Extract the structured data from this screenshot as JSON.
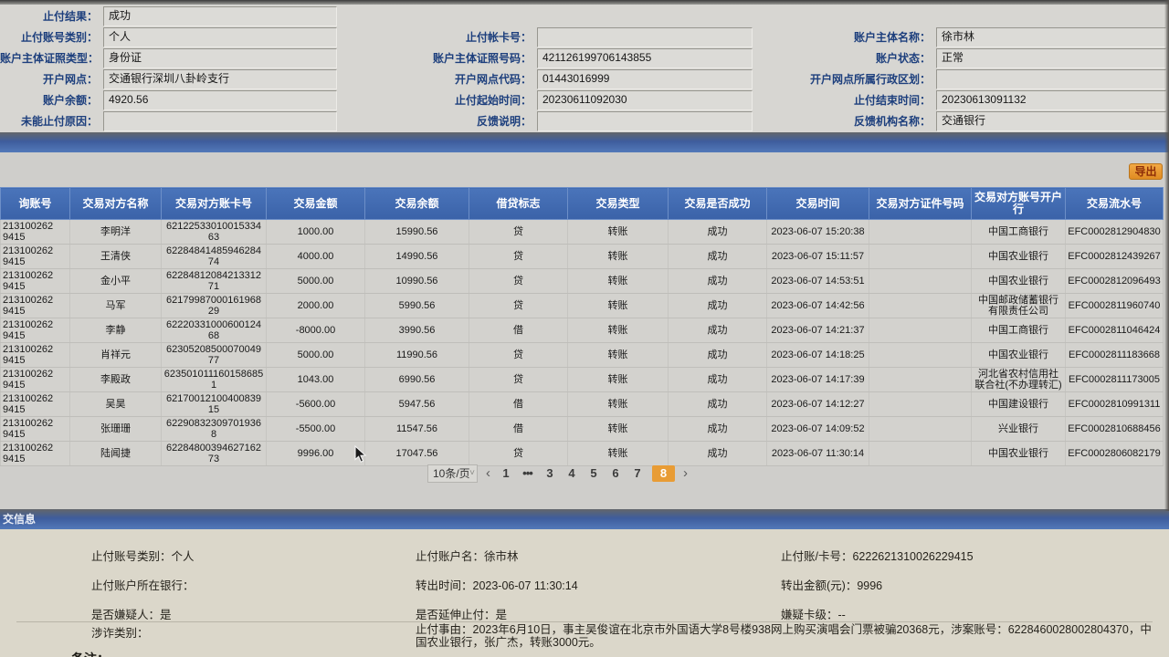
{
  "colors": {
    "table_header_blue": "#4068ae",
    "bar_gradient_blue": "#3e5d9d",
    "active_page_orange": "#e89c35",
    "export_button_orange": "#ee9c33",
    "form_label_navy": "#1d3f7d"
  },
  "top_form": {
    "rows": [
      {
        "cells": [
          {
            "label": "止付结果：",
            "value": "成功",
            "field": true
          },
          {
            "label": "",
            "value": "",
            "field": false
          },
          {
            "label": "",
            "value": "",
            "field": false
          }
        ]
      },
      {
        "cells": [
          {
            "label": "止付账号类别：",
            "value": "个人",
            "field": true
          },
          {
            "label": "止付帐卡号：",
            "value": "",
            "field": true
          },
          {
            "label": "账户主体名称：",
            "value": "徐市林",
            "field": true
          }
        ]
      },
      {
        "cells": [
          {
            "label": "账户主体证照类型：",
            "value": "身份证",
            "field": true
          },
          {
            "label": "账户主体证照号码：",
            "value": "421126199706143855",
            "field": true
          },
          {
            "label": "账户状态：",
            "value": "正常",
            "field": true
          }
        ]
      },
      {
        "cells": [
          {
            "label": "开户网点：",
            "value": "交通银行深圳八卦岭支行",
            "field": true
          },
          {
            "label": "开户网点代码：",
            "value": "01443016999",
            "field": true
          },
          {
            "label": "开户网点所属行政区划：",
            "value": "",
            "field": true
          }
        ]
      },
      {
        "cells": [
          {
            "label": "账户余额：",
            "value": "4920.56",
            "field": true
          },
          {
            "label": "止付起始时间：",
            "value": "20230611092030",
            "field": true
          },
          {
            "label": "止付结束时间：",
            "value": "20230613091132",
            "field": true
          }
        ]
      },
      {
        "cells": [
          {
            "label": "未能止付原因：",
            "value": "",
            "field": true
          },
          {
            "label": "反馈说明：",
            "value": "",
            "field": true
          },
          {
            "label": "反馈机构名称：",
            "value": "交通银行",
            "field": true
          }
        ]
      }
    ]
  },
  "table": {
    "export_label": "导出",
    "columns": [
      "询账号",
      "交易对方名称",
      "交易对方账卡号",
      "交易金额",
      "交易余额",
      "借贷标志",
      "交易类型",
      "交易是否成功",
      "交易时间",
      "交易对方证件号码",
      "交易对方账号开户行",
      "交易流水号"
    ],
    "rows": [
      [
        "213100262\n9415",
        "李明洋",
        "6212253301001533463",
        "1000.00",
        "15990.56",
        "贷",
        "转账",
        "成功",
        "2023-06-07 15:20:38",
        "",
        "中国工商银行",
        "EFC0002812904830"
      ],
      [
        "213100262\n9415",
        "王清侠",
        "6228484148594628474",
        "4000.00",
        "14990.56",
        "贷",
        "转账",
        "成功",
        "2023-06-07 15:11:57",
        "",
        "中国农业银行",
        "EFC0002812439267"
      ],
      [
        "213100262\n9415",
        "金小平",
        "6228481208421331271",
        "5000.00",
        "10990.56",
        "贷",
        "转账",
        "成功",
        "2023-06-07 14:53:51",
        "",
        "中国农业银行",
        "EFC0002812096493"
      ],
      [
        "213100262\n9415",
        "马军",
        "6217998700016196829",
        "2000.00",
        "5990.56",
        "贷",
        "转账",
        "成功",
        "2023-06-07 14:42:56",
        "",
        "中国邮政储蓄银行有限责任公司",
        "EFC0002811960740"
      ],
      [
        "213100262\n9415",
        "李静",
        "6222033100060012468",
        "-8000.00",
        "3990.56",
        "借",
        "转账",
        "成功",
        "2023-06-07 14:21:37",
        "",
        "中国工商银行",
        "EFC0002811046424"
      ],
      [
        "213100262\n9415",
        "肖祥元",
        "6230520850007004977",
        "5000.00",
        "11990.56",
        "贷",
        "转账",
        "成功",
        "2023-06-07 14:18:25",
        "",
        "中国农业银行",
        "EFC0002811183668"
      ],
      [
        "213100262\n9415",
        "李殿政",
        "6235010111601586851",
        "1043.00",
        "6990.56",
        "贷",
        "转账",
        "成功",
        "2023-06-07 14:17:39",
        "",
        "河北省农村信用社联合社(不办理转汇)",
        "EFC0002811173005"
      ],
      [
        "213100262\n9415",
        "吴昊",
        "6217001210040083915",
        "-5600.00",
        "5947.56",
        "借",
        "转账",
        "成功",
        "2023-06-07 14:12:27",
        "",
        "中国建设银行",
        "EFC0002810991311"
      ],
      [
        "213100262\n9415",
        "张珊珊",
        "622908323097019368",
        "-5500.00",
        "11547.56",
        "借",
        "转账",
        "成功",
        "2023-06-07 14:09:52",
        "",
        "兴业银行",
        "EFC0002810688456"
      ],
      [
        "213100262\n9415",
        "陆闻捷",
        "6228480039462716273",
        "9996.00",
        "17047.56",
        "贷",
        "转账",
        "成功",
        "2023-06-07 11:30:14",
        "",
        "中国农业银行",
        "EFC0002806082179"
      ]
    ]
  },
  "pagination": {
    "page_size": "10条/页",
    "prev": "‹",
    "next": "›",
    "pages": [
      "1",
      "•••",
      "3",
      "4",
      "5",
      "6",
      "7",
      "8"
    ],
    "active_page": "8"
  },
  "bottom": {
    "section_title": "交信息",
    "col1": [
      "止付账号类别：个人",
      "止付账户所在银行：",
      "是否嫌疑人：是"
    ],
    "col2": [
      "止付账户名：徐市林",
      "转出时间：2023-06-07 11:30:14",
      "是否延伸止付：是"
    ],
    "col3": [
      "止付账/卡号：6222621310026229415",
      "转出金额(元)：9996",
      "嫌疑卡级：--"
    ],
    "fraud_label": "涉诈类别：",
    "reason": "止付事由：2023年6月10日，事主吴俊谊在北京市外国语大学8号楼938网上购买演唱会门票被骗20368元，涉案账号：6228460028002804370，中国农业银行，张广杰，转账3000元。",
    "note_partial": "备注："
  }
}
